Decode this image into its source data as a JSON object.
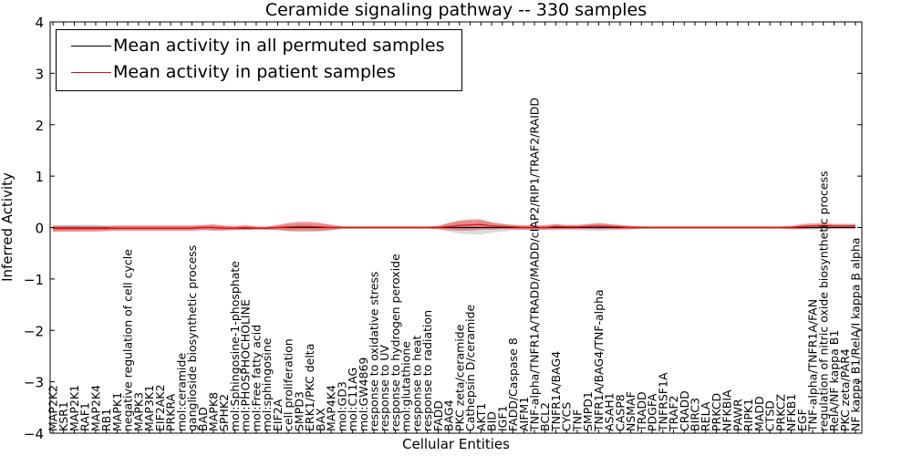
{
  "chart_data": {
    "type": "line",
    "title": "Ceramide signaling pathway -- 330 samples",
    "xlabel": "Cellular Entities",
    "ylabel": "Inferred Activity",
    "ylim": [
      -4,
      4
    ],
    "yticks": [
      "4",
      "3",
      "2",
      "1",
      "0",
      "−1",
      "−2",
      "−3",
      "−4"
    ],
    "legend": {
      "placement": "top-left",
      "entries": [
        {
          "label": "Mean activity in all permuted samples",
          "color": "#000000"
        },
        {
          "label": "Mean activity in patient samples",
          "color": "#ff0000"
        }
      ]
    },
    "categories": [
      "MAP2K2",
      "KSR1",
      "MAP2K1",
      "RAF1",
      "MAP2K4",
      "RB1",
      "MAPK1",
      "negative regulation of cell cycle",
      "MAPK3",
      "MAP3K1",
      "EIF2AK2",
      "PRKRA",
      "mol:ceramide",
      "ganglioside biosynthetic process",
      "BAD",
      "MAPK8",
      "SPHK2",
      "mol:Sphingosine-1-phosphate",
      "mol:PHOSPHOCHOLINE",
      "mol:Free fatty acid",
      "mol:sphingosine",
      "EIF2A",
      "cell proliferation",
      "SMPD3",
      "ERK1/PKC delta",
      "BAX",
      "MAP4K4",
      "mol:GD3",
      "mol:C11AG",
      "mol:GW4869",
      "response to oxidative stress",
      "response to UV",
      "response to hydrogen peroxide",
      "mol:glutathione",
      "response to heat",
      "response to radiation",
      "FADD",
      "BAG4",
      "PKC zeta/ceramide",
      "Cathepsin D/ceramide",
      "AKT1",
      "BID",
      "IGF1",
      "FADD/Caspase 8",
      "AIFM1",
      "TNF-alpha/TNFR1A/TRADD/MADD/cIAP2/RIP1/TRAF2/RAIDD",
      "BCL2",
      "TNFR1A/BAG4",
      "CYCS",
      "TNF",
      "SMPD1",
      "TNFR1A/BAG4/TNF-alpha",
      "ASAH1",
      "CASP8",
      "NSMAF",
      "TRADD",
      "PDGFA",
      "TNFRSF1A",
      "TRAF2",
      "CRADD",
      "BIRC3",
      "RELA",
      "PRKCD",
      "NFKBIA",
      "PAWR",
      "RIPK1",
      "MADD",
      "CTSD",
      "PRKCZ",
      "NFKB1",
      "EGF",
      "TNF-alpha/TNFR1A/FAN",
      "regulation of nitric oxide biosynthetic process",
      "RelA/NF kappa B1",
      "PKC zeta/PAR4",
      "NF kappa B1/RelA/I kappa B alpha"
    ],
    "series": [
      {
        "name": "Mean activity in all permuted samples",
        "color": "#000000",
        "values": [
          -0.01,
          -0.01,
          -0.01,
          -0.01,
          -0.01,
          -0.01,
          -0.01,
          -0.01,
          -0.01,
          -0.01,
          -0.01,
          -0.01,
          -0.01,
          -0.01,
          0.0,
          0.0,
          -0.01,
          -0.01,
          -0.01,
          -0.01,
          -0.01,
          0.0,
          0.0,
          0.0,
          0.0,
          0.0,
          0.0,
          0.0,
          0.0,
          0.0,
          0.0,
          0.0,
          0.0,
          0.0,
          0.0,
          0.0,
          0.0,
          0.0,
          0.0,
          0.0,
          0.0,
          0.0,
          0.0,
          0.0,
          0.0,
          0.0,
          0.0,
          0.0,
          0.0,
          0.0,
          0.0,
          0.0,
          0.0,
          0.0,
          0.0,
          0.0,
          0.0,
          0.0,
          0.0,
          0.0,
          0.0,
          0.0,
          0.0,
          0.0,
          0.0,
          0.0,
          0.0,
          0.0,
          0.0,
          0.0,
          0.0,
          0.0,
          0.0,
          0.0,
          0.0,
          0.0
        ],
        "band": [
          0.06,
          0.06,
          0.06,
          0.05,
          0.05,
          0.05,
          0.05,
          0.05,
          0.05,
          0.05,
          0.05,
          0.05,
          0.05,
          0.05,
          0.05,
          0.06,
          0.04,
          0.03,
          0.04,
          0.03,
          0.03,
          0.05,
          0.07,
          0.08,
          0.08,
          0.07,
          0.06,
          0.03,
          0.02,
          0.02,
          0.02,
          0.02,
          0.02,
          0.02,
          0.02,
          0.02,
          0.03,
          0.08,
          0.12,
          0.13,
          0.14,
          0.1,
          0.08,
          0.06,
          0.05,
          0.05,
          0.05,
          0.06,
          0.05,
          0.05,
          0.06,
          0.07,
          0.06,
          0.05,
          0.04,
          0.03,
          0.02,
          0.02,
          0.02,
          0.02,
          0.02,
          0.02,
          0.02,
          0.02,
          0.02,
          0.02,
          0.02,
          0.02,
          0.02,
          0.03,
          0.04,
          0.04,
          0.05,
          0.03,
          0.03,
          0.03
        ]
      },
      {
        "name": "Mean activity in patient samples",
        "color": "#ff0000",
        "values": [
          -0.02,
          -0.02,
          -0.02,
          -0.02,
          -0.02,
          -0.02,
          -0.01,
          -0.01,
          -0.01,
          -0.01,
          -0.01,
          -0.01,
          -0.01,
          -0.01,
          0.0,
          0.0,
          -0.01,
          -0.01,
          0.0,
          -0.01,
          -0.01,
          0.0,
          0.01,
          0.02,
          0.02,
          0.01,
          0.0,
          0.0,
          0.0,
          0.0,
          0.0,
          0.0,
          0.0,
          0.0,
          0.0,
          0.0,
          0.0,
          0.02,
          0.04,
          0.05,
          0.06,
          0.03,
          0.02,
          0.01,
          0.0,
          0.0,
          0.0,
          0.02,
          0.01,
          0.01,
          0.02,
          0.03,
          0.02,
          0.01,
          0.0,
          0.0,
          0.0,
          0.0,
          0.0,
          0.0,
          0.0,
          0.0,
          0.0,
          0.0,
          0.0,
          0.0,
          0.0,
          0.0,
          0.0,
          0.0,
          0.02,
          0.03,
          0.04,
          0.03,
          0.03,
          0.03
        ],
        "band": [
          0.06,
          0.06,
          0.06,
          0.06,
          0.06,
          0.05,
          0.05,
          0.05,
          0.05,
          0.05,
          0.05,
          0.05,
          0.05,
          0.05,
          0.05,
          0.06,
          0.05,
          0.04,
          0.05,
          0.03,
          0.03,
          0.05,
          0.08,
          0.09,
          0.09,
          0.08,
          0.05,
          0.02,
          0.02,
          0.02,
          0.02,
          0.02,
          0.02,
          0.02,
          0.02,
          0.02,
          0.03,
          0.07,
          0.1,
          0.11,
          0.1,
          0.07,
          0.05,
          0.04,
          0.04,
          0.04,
          0.04,
          0.05,
          0.04,
          0.04,
          0.05,
          0.06,
          0.05,
          0.04,
          0.03,
          0.02,
          0.02,
          0.02,
          0.02,
          0.02,
          0.02,
          0.02,
          0.02,
          0.02,
          0.02,
          0.02,
          0.02,
          0.02,
          0.02,
          0.03,
          0.05,
          0.05,
          0.05,
          0.04,
          0.04,
          0.04
        ]
      }
    ]
  }
}
